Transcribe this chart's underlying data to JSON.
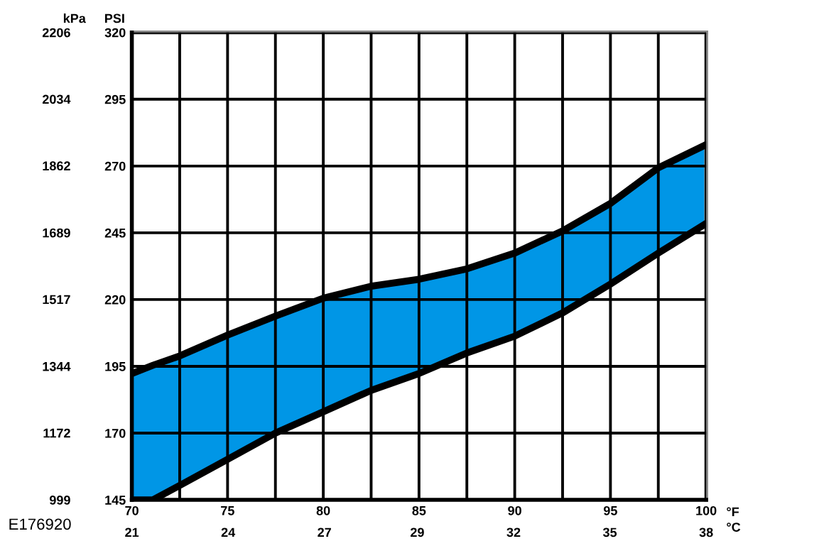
{
  "chart_data": {
    "type": "area",
    "xlabel": "°F",
    "x2label": "°C",
    "ylabel": "PSI",
    "y2label": "kPa",
    "xlim": [
      70,
      100
    ],
    "xticks": [
      70,
      {
        "value": 72.5,
        "label": null
      },
      75,
      {
        "value": 77.5,
        "label": null
      },
      80,
      {
        "value": 82.5,
        "label": null
      },
      85,
      {
        "value": 87.5,
        "label": null
      },
      90,
      {
        "value": 92.5,
        "label": null
      },
      95,
      {
        "value": 97.5,
        "label": null
      },
      100
    ],
    "x2lim": [
      21.1,
      37.8
    ],
    "x2ticks": [
      {
        "value": 21.1,
        "label": "21"
      },
      {
        "value": 23.9,
        "label": "24"
      },
      {
        "value": 26.7,
        "label": "27"
      },
      {
        "value": 29.4,
        "label": "29"
      },
      {
        "value": 32.2,
        "label": "32"
      },
      {
        "value": 35,
        "label": "35"
      },
      {
        "value": 37.8,
        "label": "38"
      }
    ],
    "ylim": [
      145,
      320
    ],
    "yticks": [
      145,
      170,
      195,
      220,
      245,
      270,
      295,
      320
    ],
    "y2lim": [
      999,
      2206
    ],
    "y2ticks": [
      999,
      1172,
      1344,
      1517,
      1689,
      1862,
      2034,
      2206
    ],
    "grid": true,
    "x": [
      70,
      71.1,
      72.5,
      75,
      77.5,
      80,
      82.5,
      85,
      87.5,
      90,
      92.5,
      95,
      97.5,
      100
    ],
    "series": [
      {
        "color": "#0096e6",
        "values": [
          192.3,
          195.4,
          198.9,
          206.7,
          213.8,
          220.5,
          225,
          227.6,
          231.5,
          237.4,
          245.7,
          256,
          269.3,
          278
        ]
      },
      {
        "color": "#ffffff",
        "values": [
          145,
          145,
          150.4,
          160.2,
          170,
          178,
          186,
          192.3,
          200,
          206.3,
          215,
          225.8,
          237.4,
          248.5
        ]
      }
    ],
    "annotations": [
      "E176920"
    ]
  }
}
